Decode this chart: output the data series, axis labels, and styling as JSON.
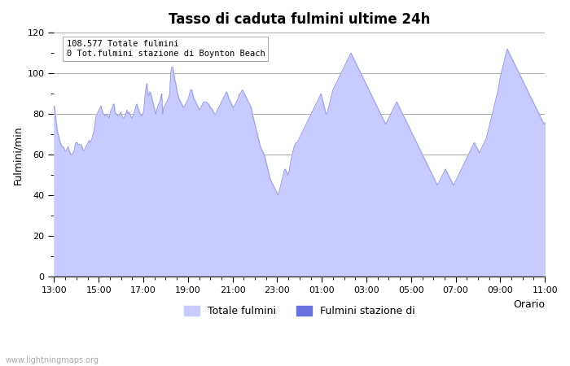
{
  "title": "Tasso di caduta fulmini ultime 24h",
  "xlabel": "Orario",
  "ylabel": "Fulmini/min",
  "annotation_line1": "108.577 Totale fulmini",
  "annotation_line2": "0 Tot.fulmini stazione di Boynton Beach",
  "watermark": "www.lightningmaps.org",
  "legend_label1": "Totale fulmini",
  "legend_label2": "Fulmini stazione di",
  "fill_color": "#c8cbff",
  "fill_color2": "#6b72e0",
  "line_color": "#9090cc",
  "ylim": [
    0,
    120
  ],
  "yticks": [
    0,
    20,
    40,
    60,
    80,
    100,
    120
  ],
  "xtick_labels": [
    "13:00",
    "15:00",
    "17:00",
    "19:00",
    "21:00",
    "23:00",
    "01:00",
    "03:00",
    "05:00",
    "07:00",
    "09:00",
    "11:00"
  ],
  "y_values": [
    84,
    80,
    76,
    72,
    70,
    68,
    66,
    65,
    64,
    64,
    63,
    62,
    62,
    63,
    64,
    62,
    61,
    60,
    60,
    61,
    62,
    65,
    66,
    66,
    65,
    65,
    65,
    65,
    64,
    62,
    62,
    63,
    64,
    65,
    66,
    67,
    66,
    67,
    68,
    70,
    72,
    75,
    79,
    80,
    81,
    82,
    83,
    84,
    82,
    80,
    80,
    79,
    80,
    80,
    79,
    78,
    80,
    82,
    83,
    84,
    85,
    81,
    80,
    80,
    79,
    79,
    80,
    81,
    79,
    78,
    78,
    79,
    80,
    82,
    80,
    81,
    80,
    79,
    78,
    79,
    80,
    82,
    84,
    85,
    83,
    82,
    80,
    80,
    79,
    80,
    82,
    88,
    92,
    95,
    90,
    89,
    91,
    90,
    88,
    86,
    84,
    82,
    80,
    82,
    84,
    85,
    86,
    88,
    90,
    80,
    83,
    84,
    85,
    86,
    87,
    88,
    90,
    100,
    103,
    103,
    100,
    97,
    95,
    92,
    90,
    88,
    87,
    86,
    85,
    84,
    83,
    84,
    85,
    86,
    87,
    88,
    90,
    92,
    92,
    90,
    88,
    87,
    86,
    85,
    84,
    83,
    82,
    83,
    84,
    85,
    86,
    86,
    86,
    86,
    85,
    85,
    84,
    83,
    83,
    82,
    81,
    80,
    80,
    81,
    82,
    83,
    84,
    85,
    86,
    87,
    88,
    89,
    90,
    91,
    90,
    88,
    87,
    86,
    85,
    84,
    83,
    84,
    85,
    86,
    87,
    88,
    90,
    90,
    91,
    92,
    91,
    90,
    89,
    88,
    87,
    86,
    85,
    84,
    83,
    80,
    78,
    76,
    74,
    72,
    70,
    68,
    66,
    64,
    63,
    62,
    61,
    60,
    58,
    56,
    54,
    52,
    50,
    48,
    47,
    46,
    45,
    44,
    43,
    42,
    41,
    40,
    42,
    44,
    46,
    48,
    50,
    52,
    53,
    52,
    51,
    50,
    52,
    55,
    58,
    60,
    62,
    64,
    65,
    66,
    66,
    67,
    68,
    69,
    70,
    71,
    72,
    73,
    74,
    75,
    76,
    77,
    78,
    79,
    80,
    81,
    82,
    83,
    84,
    85,
    86,
    87,
    88,
    89,
    90,
    88,
    86,
    84,
    82,
    80,
    80,
    82,
    84,
    86,
    88,
    90,
    92,
    93,
    94,
    95,
    96,
    97,
    98,
    99,
    100,
    101,
    102,
    103,
    104,
    105,
    106,
    107,
    108,
    109,
    110,
    109,
    108,
    107,
    106,
    105,
    104,
    103,
    102,
    101,
    100,
    99,
    98,
    97,
    96,
    95,
    94,
    93,
    92,
    91,
    90,
    89,
    88,
    87,
    86,
    85,
    84,
    83,
    82,
    81,
    80,
    79,
    78,
    77,
    76,
    75,
    76,
    77,
    78,
    79,
    80,
    81,
    82,
    83,
    84,
    85,
    86,
    85,
    84,
    83,
    82,
    81,
    80,
    79,
    78,
    77,
    76,
    75,
    74,
    73,
    72,
    71,
    70,
    69,
    68,
    67,
    66,
    65,
    64,
    63,
    62,
    61,
    60,
    59,
    58,
    57,
    56,
    55,
    54,
    53,
    52,
    51,
    50,
    49,
    48,
    47,
    46,
    45,
    46,
    47,
    48,
    49,
    50,
    51,
    52,
    53,
    52,
    51,
    50,
    49,
    48,
    47,
    46,
    45,
    46,
    47,
    48,
    49,
    50,
    51,
    52,
    53,
    54,
    55,
    56,
    57,
    58,
    59,
    60,
    61,
    62,
    63,
    64,
    65,
    66,
    65,
    64,
    63,
    62,
    61,
    62,
    63,
    64,
    65,
    66,
    67,
    68,
    70,
    72,
    74,
    76,
    78,
    80,
    82,
    84,
    86,
    88,
    90,
    92,
    95,
    98,
    100,
    102,
    104,
    106,
    108,
    110,
    112,
    111,
    110,
    109,
    108,
    107,
    106,
    105,
    104,
    103,
    102,
    101,
    100,
    99,
    98,
    97,
    96,
    95,
    94,
    93,
    92,
    91,
    90,
    89,
    88,
    87,
    86,
    85,
    84,
    83,
    82,
    81,
    80,
    79,
    78,
    77,
    76,
    75,
    76
  ]
}
